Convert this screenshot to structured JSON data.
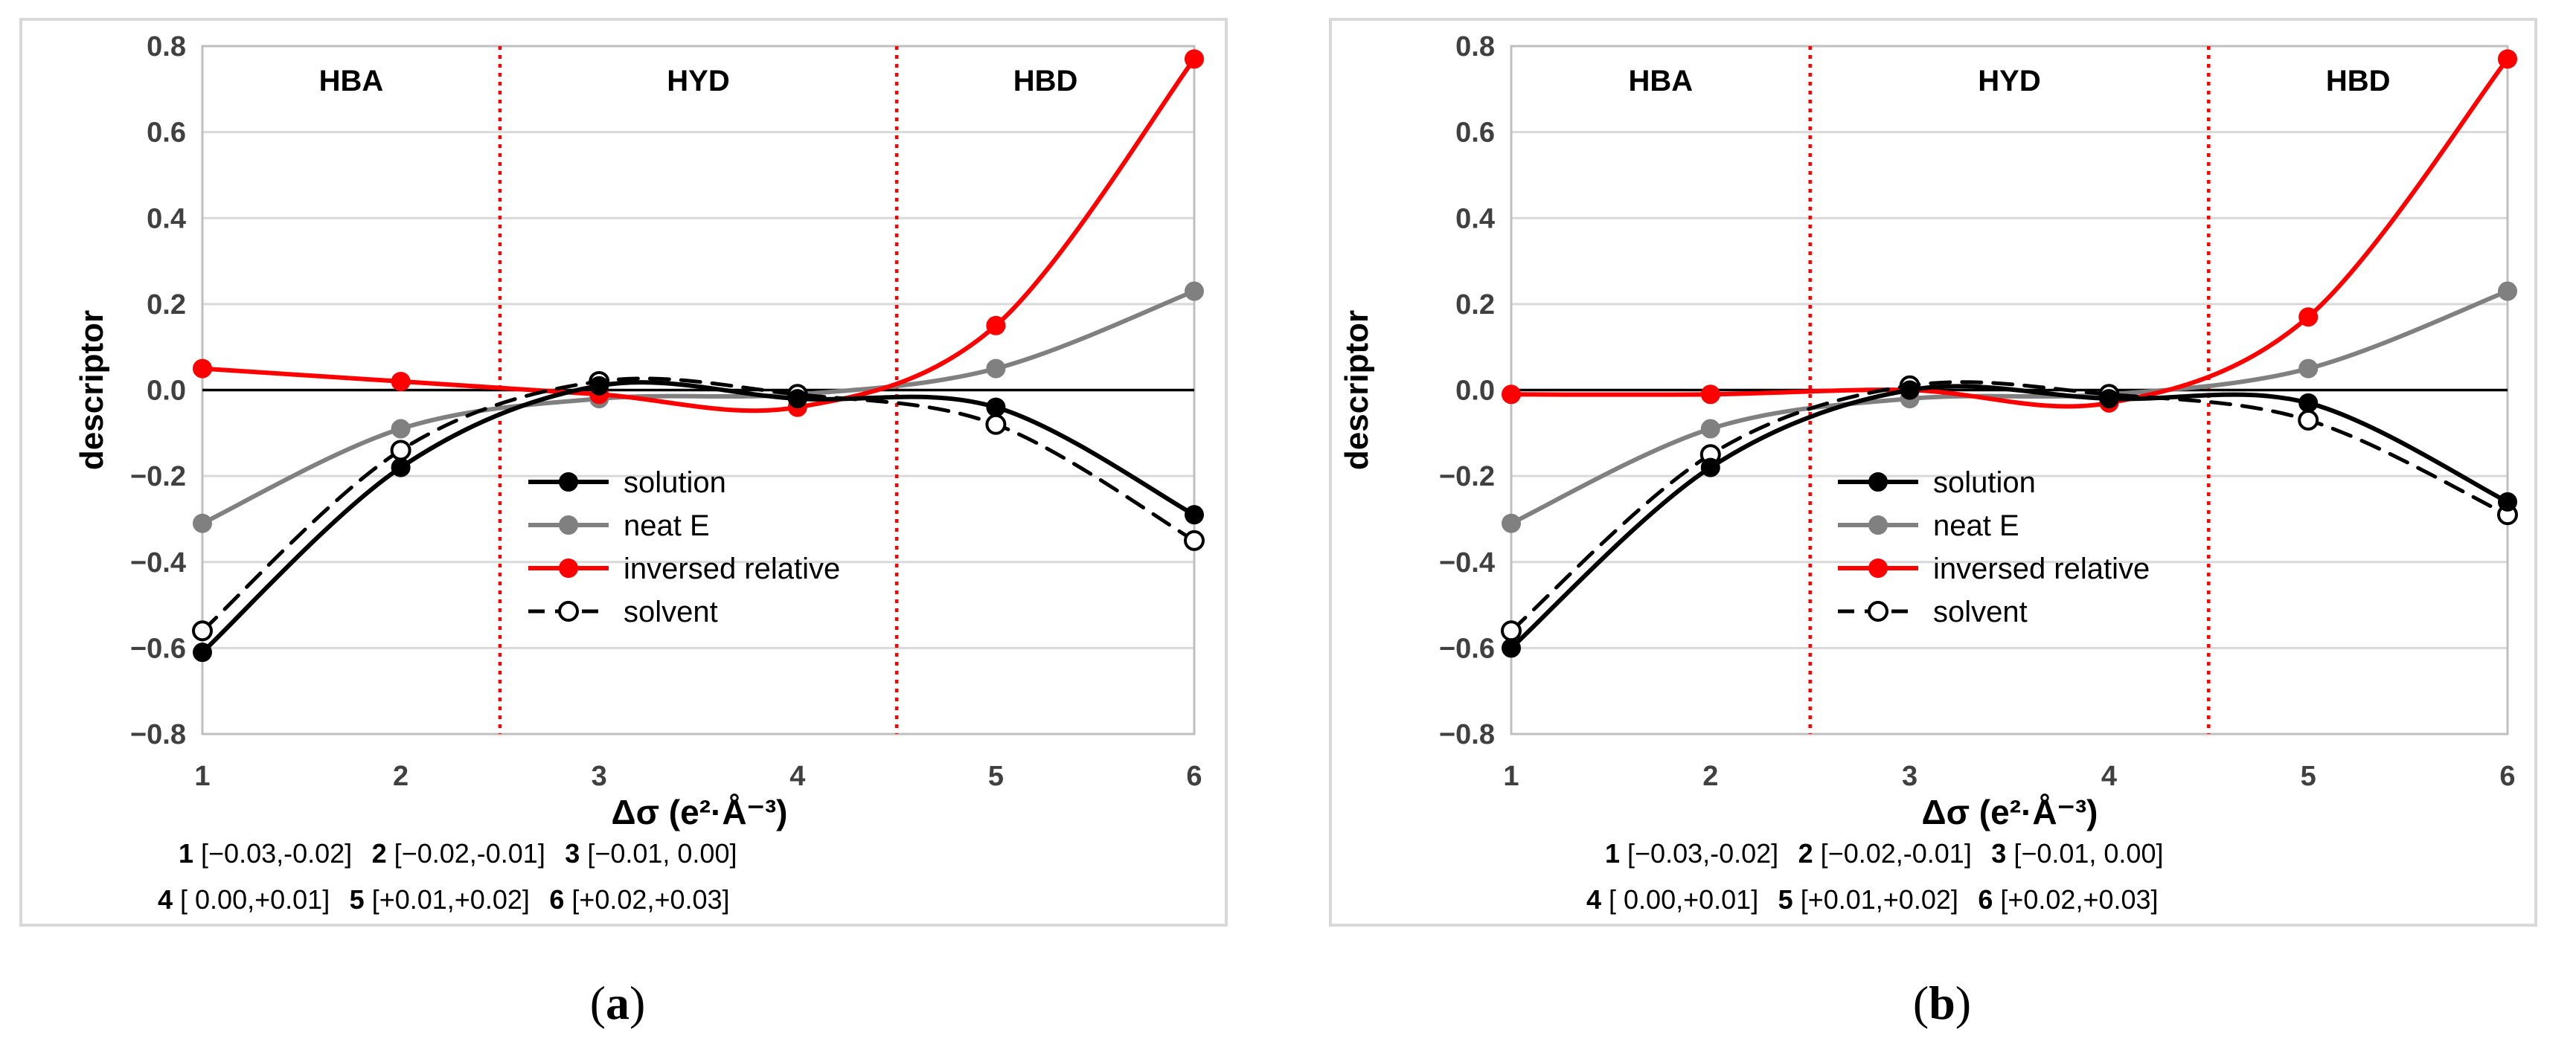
{
  "chart_data": [
    {
      "panel": "a",
      "type": "line",
      "caption_open": "(",
      "caption_letter": "a",
      "caption_close": ")",
      "xlabel": "Δσ (e²·Å⁻³)",
      "ylabel": "descriptor",
      "x": [
        1,
        2,
        3,
        4,
        5,
        6
      ],
      "x_tick_labels": [
        "1",
        "2",
        "3",
        "4",
        "5",
        "6"
      ],
      "y_tick_labels": [
        "0.8",
        "0.6",
        "0.4",
        "0.2",
        "0.0",
        "−0.2",
        "−0.4",
        "−0.6",
        "−0.8"
      ],
      "ylim": [
        -0.8,
        0.8
      ],
      "regions": [
        {
          "label": "HBA",
          "center_x": 1.75
        },
        {
          "label": "HYD",
          "center_x": 3.5
        },
        {
          "label": "HBD",
          "center_x": 5.25
        }
      ],
      "dividers": [
        2.5,
        4.5
      ],
      "series": [
        {
          "name": "solution",
          "color": "#000000",
          "dashed": false,
          "marker": "filled",
          "values": [
            -0.61,
            -0.18,
            0.01,
            -0.02,
            -0.04,
            -0.29
          ]
        },
        {
          "name": "neat E",
          "color": "#808080",
          "dashed": false,
          "marker": "filled",
          "values": [
            -0.31,
            -0.09,
            -0.02,
            -0.01,
            0.05,
            0.23
          ]
        },
        {
          "name": "inversed relative",
          "color": "#ff0000",
          "dashed": false,
          "marker": "filled",
          "values": [
            0.05,
            0.02,
            -0.01,
            -0.04,
            0.15,
            0.77
          ]
        },
        {
          "name": "solvent",
          "color": "#000000",
          "dashed": true,
          "marker": "open",
          "values": [
            -0.56,
            -0.14,
            0.02,
            -0.01,
            -0.08,
            -0.35
          ]
        }
      ],
      "ranges": [
        {
          "num": "1",
          "text": " [−0.03,-0.02]"
        },
        {
          "num": "2",
          "text": " [−0.02,-0.01]"
        },
        {
          "num": "3",
          "text": " [−0.01, 0.00]"
        },
        {
          "num": "4",
          "text": " [ 0.00,+0.01]"
        },
        {
          "num": "5",
          "text": " [+0.01,+0.02]"
        },
        {
          "num": "6",
          "text": " [+0.02,+0.03]"
        }
      ]
    },
    {
      "panel": "b",
      "type": "line",
      "caption_open": "(",
      "caption_letter": "b",
      "caption_close": ")",
      "xlabel": "Δσ (e²·Å⁻³)",
      "ylabel": "descriptor",
      "x": [
        1,
        2,
        3,
        4,
        5,
        6
      ],
      "x_tick_labels": [
        "1",
        "2",
        "3",
        "4",
        "5",
        "6"
      ],
      "y_tick_labels": [
        "0.8",
        "0.6",
        "0.4",
        "0.2",
        "0.0",
        "−0.2",
        "−0.4",
        "−0.6",
        "−0.8"
      ],
      "ylim": [
        -0.8,
        0.8
      ],
      "regions": [
        {
          "label": "HBA",
          "center_x": 1.75
        },
        {
          "label": "HYD",
          "center_x": 3.5
        },
        {
          "label": "HBD",
          "center_x": 5.25
        }
      ],
      "dividers": [
        2.5,
        4.5
      ],
      "series": [
        {
          "name": "solution",
          "color": "#000000",
          "dashed": false,
          "marker": "filled",
          "values": [
            -0.6,
            -0.18,
            0.0,
            -0.02,
            -0.03,
            -0.26
          ]
        },
        {
          "name": "neat E",
          "color": "#808080",
          "dashed": false,
          "marker": "filled",
          "values": [
            -0.31,
            -0.09,
            -0.02,
            -0.01,
            0.05,
            0.23
          ]
        },
        {
          "name": "inversed relative",
          "color": "#ff0000",
          "dashed": false,
          "marker": "filled",
          "values": [
            -0.01,
            -0.01,
            0.0,
            -0.03,
            0.17,
            0.77
          ]
        },
        {
          "name": "solvent",
          "color": "#000000",
          "dashed": true,
          "marker": "open",
          "values": [
            -0.56,
            -0.15,
            0.01,
            -0.01,
            -0.07,
            -0.29
          ]
        }
      ],
      "ranges": [
        {
          "num": "1",
          "text": " [−0.03,-0.02]"
        },
        {
          "num": "2",
          "text": " [−0.02,-0.01]"
        },
        {
          "num": "3",
          "text": " [−0.01, 0.00]"
        },
        {
          "num": "4",
          "text": " [ 0.00,+0.01]"
        },
        {
          "num": "5",
          "text": " [+0.01,+0.02]"
        },
        {
          "num": "6",
          "text": " [+0.02,+0.03]"
        }
      ]
    }
  ]
}
